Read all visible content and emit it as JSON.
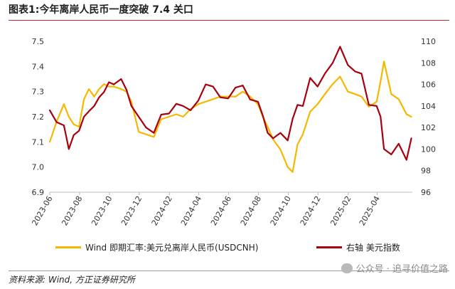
{
  "figure": {
    "title": "图表1:今年离岸人民币一度突破 7.4 关口",
    "source": "资料来源: Wind, 方正证券研究所",
    "watermark": "公众号 · 追寻价值之路"
  },
  "chart_data": {
    "type": "line",
    "x_ticks": [
      "2023-06",
      "2023-08",
      "2023-10",
      "2023-12",
      "2024-02",
      "2024-04",
      "2024-06",
      "2024-08",
      "2024-10",
      "2024-12",
      "2025-02",
      "2025-04"
    ],
    "y_left": {
      "min": 6.9,
      "max": 7.5,
      "ticks": [
        "6.9",
        "7.0",
        "7.1",
        "7.2",
        "7.3",
        "7.4",
        "7.5"
      ]
    },
    "y_right": {
      "min": 96,
      "max": 110,
      "ticks": [
        "96",
        "98",
        "100",
        "102",
        "104",
        "106",
        "108",
        "110"
      ]
    },
    "legend_position": "bottom",
    "grid": false,
    "series": [
      {
        "name": "Wind 即期汇率:美元兑离岸人民币(USDCNH)",
        "axis": "left",
        "color": "#f5b800",
        "x": [
          "2023-06-01",
          "2023-06-15",
          "2023-06-30",
          "2023-07-10",
          "2023-07-20",
          "2023-07-31",
          "2023-08-10",
          "2023-08-20",
          "2023-08-31",
          "2023-09-10",
          "2023-09-20",
          "2023-09-30",
          "2023-10-10",
          "2023-10-25",
          "2023-11-05",
          "2023-11-15",
          "2023-11-30",
          "2023-12-15",
          "2023-12-31",
          "2024-01-15",
          "2024-01-31",
          "2024-02-15",
          "2024-02-29",
          "2024-03-15",
          "2024-03-31",
          "2024-04-15",
          "2024-04-30",
          "2024-05-15",
          "2024-05-31",
          "2024-06-15",
          "2024-06-30",
          "2024-07-15",
          "2024-07-31",
          "2024-08-10",
          "2024-08-20",
          "2024-08-31",
          "2024-09-15",
          "2024-09-30",
          "2024-10-10",
          "2024-10-20",
          "2024-10-31",
          "2024-11-15",
          "2024-11-30",
          "2024-12-15",
          "2024-12-31",
          "2025-01-15",
          "2025-01-31",
          "2025-02-15",
          "2025-02-28",
          "2025-03-15",
          "2025-03-31",
          "2025-04-08",
          "2025-04-15",
          "2025-04-30",
          "2025-05-15",
          "2025-05-31",
          "2025-06-10"
        ],
        "values": [
          7.1,
          7.18,
          7.25,
          7.2,
          7.17,
          7.16,
          7.27,
          7.31,
          7.28,
          7.31,
          7.33,
          7.32,
          7.32,
          7.31,
          7.3,
          7.26,
          7.14,
          7.13,
          7.12,
          7.19,
          7.2,
          7.21,
          7.2,
          7.23,
          7.25,
          7.26,
          7.27,
          7.28,
          7.28,
          7.28,
          7.3,
          7.28,
          7.25,
          7.2,
          7.16,
          7.11,
          7.07,
          7.0,
          6.98,
          7.09,
          7.13,
          7.22,
          7.25,
          7.29,
          7.33,
          7.36,
          7.3,
          7.29,
          7.28,
          7.24,
          7.26,
          7.34,
          7.42,
          7.29,
          7.27,
          7.21,
          7.2
        ]
      },
      {
        "name": "右轴 美元指数",
        "axis": "right",
        "color": "#a8000f",
        "x": [
          "2023-06-01",
          "2023-06-15",
          "2023-06-30",
          "2023-07-10",
          "2023-07-20",
          "2023-07-31",
          "2023-08-10",
          "2023-08-20",
          "2023-08-31",
          "2023-09-10",
          "2023-09-20",
          "2023-09-30",
          "2023-10-10",
          "2023-10-25",
          "2023-11-05",
          "2023-11-15",
          "2023-11-30",
          "2023-12-15",
          "2023-12-31",
          "2024-01-15",
          "2024-01-31",
          "2024-02-15",
          "2024-02-29",
          "2024-03-15",
          "2024-03-31",
          "2024-04-15",
          "2024-04-30",
          "2024-05-15",
          "2024-05-31",
          "2024-06-15",
          "2024-06-30",
          "2024-07-15",
          "2024-07-31",
          "2024-08-10",
          "2024-08-20",
          "2024-08-31",
          "2024-09-15",
          "2024-09-30",
          "2024-10-10",
          "2024-10-20",
          "2024-10-31",
          "2024-11-15",
          "2024-11-30",
          "2024-12-15",
          "2024-12-31",
          "2025-01-15",
          "2025-01-31",
          "2025-02-15",
          "2025-02-28",
          "2025-03-15",
          "2025-03-31",
          "2025-04-08",
          "2025-04-15",
          "2025-04-30",
          "2025-05-15",
          "2025-05-31",
          "2025-06-10"
        ],
        "values": [
          103.6,
          102.5,
          102.2,
          100.0,
          101.3,
          101.7,
          103.0,
          103.5,
          104.0,
          104.8,
          105.3,
          106.2,
          106.0,
          106.5,
          105.5,
          104.0,
          103.0,
          102.0,
          101.5,
          103.2,
          103.3,
          104.2,
          104.0,
          103.6,
          104.5,
          106.0,
          105.8,
          104.8,
          104.7,
          105.7,
          105.9,
          104.6,
          104.4,
          103.1,
          101.5,
          101.0,
          101.5,
          100.8,
          102.8,
          104.1,
          104.0,
          106.6,
          105.8,
          107.0,
          108.0,
          109.5,
          107.8,
          107.2,
          107.0,
          104.1,
          104.0,
          103.0,
          100.0,
          99.5,
          100.5,
          99.0,
          101.0
        ]
      }
    ]
  }
}
